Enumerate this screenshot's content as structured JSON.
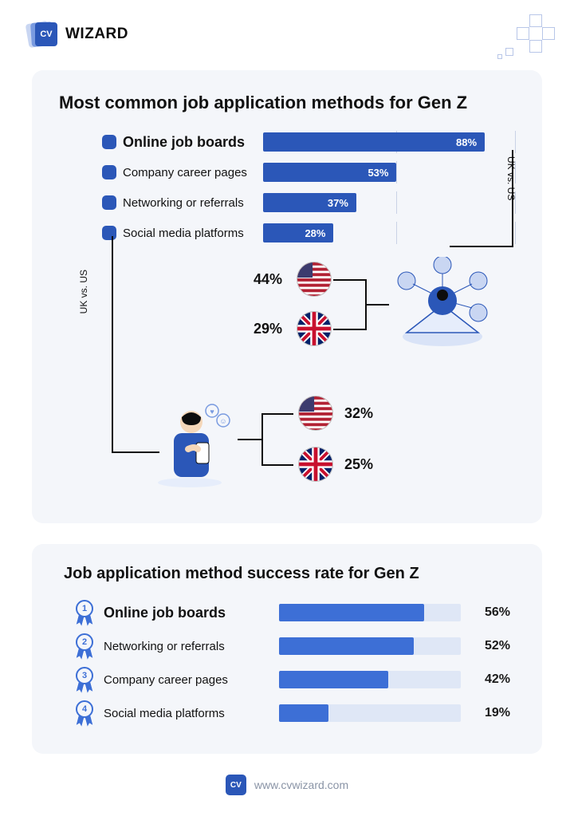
{
  "brand": {
    "name": "WIZARD",
    "badge_text": "CV",
    "url": "www.cvwizard.com"
  },
  "colors": {
    "brand_blue": "#2b57b8",
    "bar_blue": "#2b57b8",
    "track_blue": "#dfe7f6",
    "panel_bg": "#f4f6fa",
    "deco_border": "#b8c6e8",
    "tick": "#c9d2e6",
    "text": "#111111",
    "muted": "#8a94a6"
  },
  "panel1": {
    "title": "Most common job application methods for Gen Z",
    "uk_vs_us_label": "UK vs. US",
    "chart": {
      "type": "bar",
      "max_pct": 100,
      "tick_positions_pct": [
        53,
        100
      ],
      "rows": [
        {
          "label": "Online job boards",
          "value": 88,
          "emphasis": true
        },
        {
          "label": "Company career pages",
          "value": 53,
          "emphasis": false
        },
        {
          "label": "Networking or referrals",
          "value": 37,
          "emphasis": false
        },
        {
          "label": "Social media platforms",
          "value": 28,
          "emphasis": false
        }
      ],
      "bar_color": "#2b57b8",
      "bar_text_color": "#ffffff"
    },
    "breakdowns": [
      {
        "source_row_index": 2,
        "us_pct": "44%",
        "uk_pct": "29%",
        "illustration": "networking"
      },
      {
        "source_row_index": 3,
        "us_pct": "32%",
        "uk_pct": "25%",
        "illustration": "social-phone"
      }
    ]
  },
  "panel2": {
    "title": "Job application method success rate for Gen Z",
    "chart": {
      "type": "bar",
      "max_pct": 70,
      "rows": [
        {
          "rank": "1",
          "label": "Online job boards",
          "value": 56,
          "value_label": "56%",
          "emphasis": true
        },
        {
          "rank": "2",
          "label": "Networking or referrals",
          "value": 52,
          "value_label": "52%",
          "emphasis": false
        },
        {
          "rank": "3",
          "label": "Company career pages",
          "value": 42,
          "value_label": "42%",
          "emphasis": false
        },
        {
          "rank": "4",
          "label": "Social media platforms",
          "value": 19,
          "value_label": "19%",
          "emphasis": false
        }
      ],
      "bar_color": "#3d6fd6",
      "track_color": "#dfe7f6"
    }
  }
}
